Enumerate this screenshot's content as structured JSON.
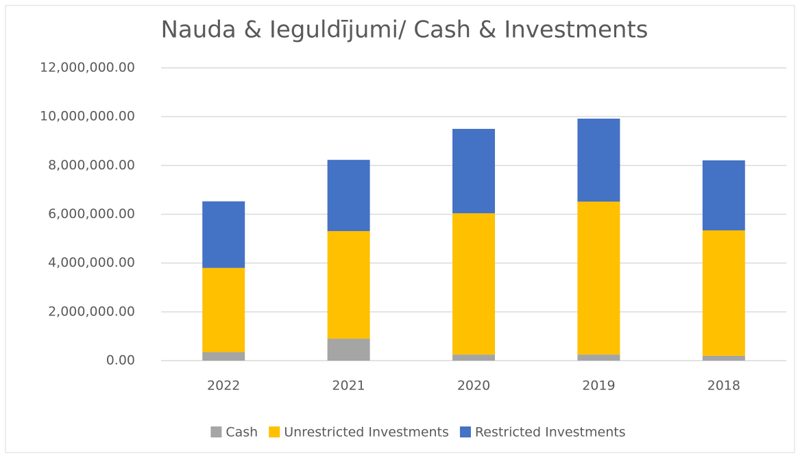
{
  "chart_data": {
    "type": "stacked_bar",
    "title": "Nauda & Ieguldījumi/ Cash & Investments",
    "categories": [
      "2022",
      "2021",
      "2020",
      "2019",
      "2018"
    ],
    "series": [
      {
        "name": "Cash",
        "color": "#a5a5a5",
        "values": [
          350000,
          900000,
          250000,
          250000,
          200000
        ]
      },
      {
        "name": "Unrestricted Investments",
        "color": "#ffc000",
        "values": [
          3450000,
          4410000,
          5790000,
          6270000,
          5140000
        ]
      },
      {
        "name": "Restricted Investments",
        "color": "#4472c4",
        "values": [
          2730000,
          2920000,
          3460000,
          3400000,
          2870000
        ]
      }
    ],
    "ylim": [
      0,
      12000000
    ],
    "yticks": [
      {
        "value": 0,
        "label": "0.00"
      },
      {
        "value": 2000000,
        "label": "2,000,000.00"
      },
      {
        "value": 4000000,
        "label": "4,000,000.00"
      },
      {
        "value": 6000000,
        "label": "6,000,000.00"
      },
      {
        "value": 8000000,
        "label": "8,000,000.00"
      },
      {
        "value": 10000000,
        "label": "10,000,000.00"
      },
      {
        "value": 12000000,
        "label": "12,000,000.00"
      }
    ],
    "grid": true,
    "legend": "bottom"
  }
}
